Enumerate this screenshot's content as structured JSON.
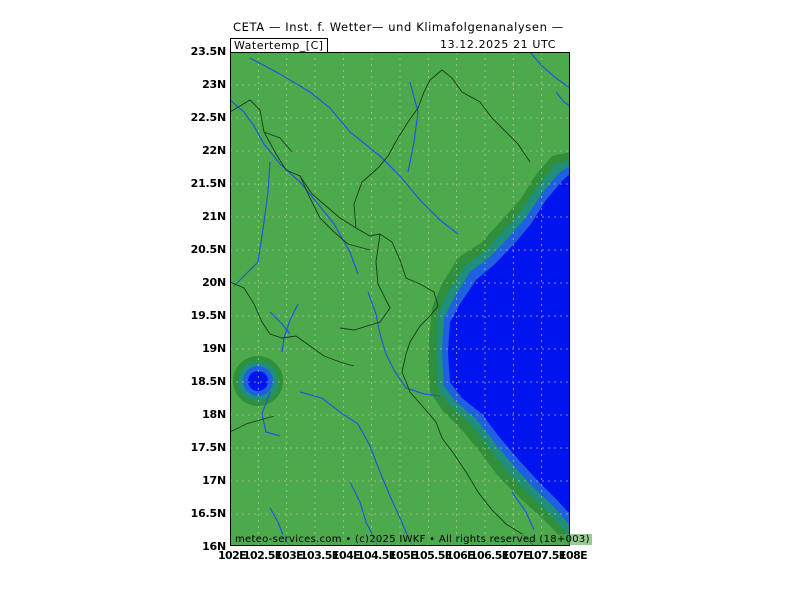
{
  "header": {
    "title": "CETA — Inst. f. Wetter— und Klimafolgenanalysen —",
    "variable": "Watertemp_[C]",
    "datetime": "13.12.2025 21 UTC"
  },
  "map": {
    "lat_labels": [
      "23.5N",
      "23N",
      "22.5N",
      "22N",
      "21.5N",
      "21N",
      "20.5N",
      "20N",
      "19.5N",
      "19N",
      "18.5N",
      "18N",
      "17.5N",
      "17N",
      "16.5N",
      "16N"
    ],
    "lon_labels": [
      "102E",
      "102.5E",
      "103E",
      "103.5E",
      "104E",
      "104.5E",
      "105E",
      "105.5E",
      "106E",
      "106.5E",
      "107E",
      "107.5E",
      "108E"
    ],
    "lat_range": [
      16,
      23.5
    ],
    "lon_range": [
      102,
      108
    ],
    "grid": true,
    "colors": {
      "land": "#4caa4c",
      "sea_deep": "#0014f0",
      "sea_mid": "#1e60e0",
      "sea_shallow": "#1f8f7a",
      "coast_band": "#2f8f3a",
      "rivers": "#2255e0",
      "borders": "#1a3a1a",
      "grid": "#c8c8a0"
    }
  },
  "footer": {
    "copyright": "meteo-services.com • (c)2025 IWKF • All rights reserved (18+003)"
  }
}
